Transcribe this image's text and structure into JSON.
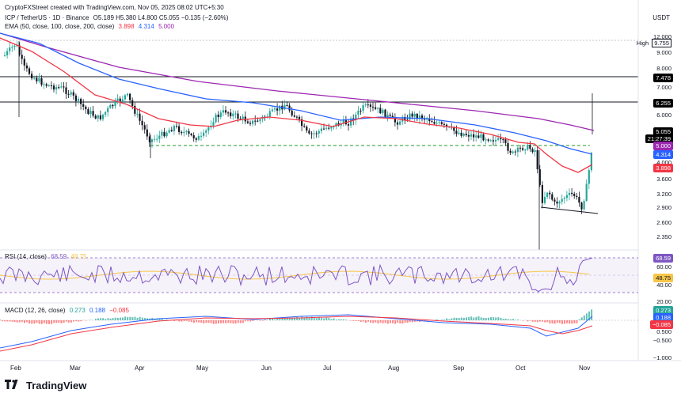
{
  "header": {
    "created_by": "CryptoFXStreet created with TradingView.com, Nov 05, 2025 08:02 UTC+5:30",
    "symbol": "ICP / TetherUS · 1D · Binance",
    "ohlc": "O5.189  H5.380  L4.800  C5.055  −0.135 (−2.60%)",
    "ema_label": "EMA (50, close, 100, close, 200, close)",
    "ema_values": [
      "3.898",
      "4.314",
      "5.000"
    ],
    "currency": "USDT"
  },
  "price_axis": {
    "labels": [
      "12.000",
      "9.000",
      "8.000",
      "7.000",
      "6.000",
      "4.000",
      "3.600",
      "3.200",
      "2.900",
      "2.600",
      "2.350"
    ],
    "high_label": "High",
    "high_value": "9.755",
    "tags": [
      {
        "text": "7.478",
        "color": "#000000"
      },
      {
        "text": "6.255",
        "color": "#000000"
      },
      {
        "text": "5.055",
        "color": "#000000"
      },
      {
        "text": "21:27:39",
        "color": "#000000"
      },
      {
        "text": "5.000",
        "color": "#9c27b0"
      },
      {
        "text": "4.314",
        "color": "#2962ff"
      },
      {
        "text": "3.898",
        "color": "#f23645"
      }
    ]
  },
  "rsi": {
    "label": "RSI (14, close)",
    "values": [
      "68.59",
      "48.75"
    ],
    "axis": [
      "60.00",
      "40.00"
    ],
    "tags": [
      {
        "text": "68.59",
        "color": "#7e57c2"
      },
      {
        "text": "48.75",
        "color": "#f7c548"
      }
    ]
  },
  "macd": {
    "label": "MACD (12, 26, close)",
    "values": [
      "0.273",
      "0.188",
      "−0.085"
    ],
    "axis": [
      "20.00",
      "0.500",
      "−0.500",
      "−1.000"
    ],
    "tags": [
      {
        "text": "0.273",
        "color": "#26a69a"
      },
      {
        "text": "0.188",
        "color": "#2962ff"
      },
      {
        "text": "−0.085",
        "color": "#f23645"
      }
    ]
  },
  "time_axis": [
    "Feb",
    "Mar",
    "Apr",
    "May",
    "Jun",
    "Jul",
    "Aug",
    "Sep",
    "Oct",
    "Nov"
  ],
  "brand": "TradingView",
  "colors": {
    "up": "#26a69a",
    "down": "#131722",
    "ema50": "#f23645",
    "ema100": "#2962ff",
    "ema200": "#9c27b0",
    "rsi": "#7e57c2",
    "rsi_ma": "#f7c548",
    "support": "#4caf50"
  }
}
